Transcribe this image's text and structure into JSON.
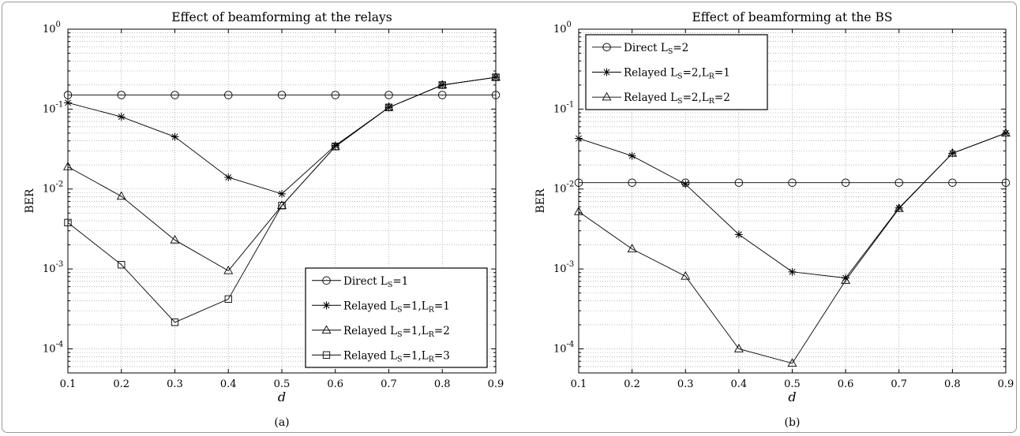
{
  "chart_data": [
    {
      "type": "line",
      "title": "Effect of beamforming at the relays",
      "xlabel": "d",
      "ylabel": "BER",
      "caption": "(a)",
      "x": [
        0.1,
        0.2,
        0.3,
        0.4,
        0.5,
        0.6,
        0.7,
        0.8,
        0.9
      ],
      "xlim": [
        0.1,
        0.9
      ],
      "xticks": [
        "0.1",
        "0.2",
        "0.3",
        "0.4",
        "0.5",
        "0.6",
        "0.7",
        "0.8",
        "0.9"
      ],
      "ylim": [
        5e-05,
        1
      ],
      "yscale": "log",
      "ytick_base": "10",
      "ytick_exps": [
        "0",
        "-1",
        "-2",
        "-3",
        "-4"
      ],
      "grid": true,
      "legend_position": "bottom-right",
      "series": [
        {
          "legend": [
            "Direct L",
            "S",
            "=1"
          ],
          "marker": "circle",
          "values": [
            0.15,
            0.15,
            0.15,
            0.15,
            0.15,
            0.15,
            0.15,
            0.15,
            0.15
          ]
        },
        {
          "legend": [
            "Relayed L",
            "S",
            "=1,L",
            "R",
            "=1"
          ],
          "marker": "star",
          "values": [
            0.12,
            0.08,
            0.045,
            0.014,
            0.0087,
            0.035,
            0.105,
            0.2,
            0.25
          ]
        },
        {
          "legend": [
            "Relayed L",
            "S",
            "=1,L",
            "R",
            "=2"
          ],
          "marker": "triangle",
          "values": [
            0.019,
            0.0081,
            0.0023,
            0.00095,
            0.0062,
            0.034,
            0.105,
            0.2,
            0.25
          ]
        },
        {
          "legend": [
            "Relayed L",
            "S",
            "=1,L",
            "R",
            "=3"
          ],
          "marker": "square",
          "values": [
            0.0038,
            0.00113,
            0.000215,
            0.00042,
            0.0062,
            0.034,
            0.105,
            0.2,
            0.25
          ]
        }
      ]
    },
    {
      "type": "line",
      "title": "Effect of beamforming at the BS",
      "xlabel": "d",
      "ylabel": "BER",
      "caption": "(b)",
      "x": [
        0.1,
        0.2,
        0.3,
        0.4,
        0.5,
        0.6,
        0.7,
        0.8,
        0.9
      ],
      "xlim": [
        0.1,
        0.9
      ],
      "xticks": [
        "0.1",
        "0.2",
        "0.3",
        "0.4",
        "0.5",
        "0.6",
        "0.7",
        "0.8",
        "0.9"
      ],
      "ylim": [
        5e-05,
        1
      ],
      "yscale": "log",
      "ytick_base": "10",
      "ytick_exps": [
        "0",
        "-1",
        "-2",
        "-3",
        "-4"
      ],
      "grid": true,
      "legend_position": "top-left",
      "series": [
        {
          "legend": [
            "Direct L",
            "S",
            "=2"
          ],
          "marker": "circle",
          "values": [
            0.012,
            0.012,
            0.012,
            0.012,
            0.012,
            0.012,
            0.012,
            0.012,
            0.012
          ]
        },
        {
          "legend": [
            "Relayed L",
            "S",
            "=2,L",
            "R",
            "=1"
          ],
          "marker": "star",
          "values": [
            0.043,
            0.026,
            0.0115,
            0.0027,
            0.00092,
            0.00077,
            0.0058,
            0.028,
            0.05
          ]
        },
        {
          "legend": [
            "Relayed L",
            "S",
            "=2,L",
            "R",
            "=2"
          ],
          "marker": "triangle",
          "values": [
            0.0052,
            0.00178,
            0.00081,
            0.0001,
            6.6e-05,
            0.00072,
            0.0057,
            0.028,
            0.05
          ]
        }
      ]
    }
  ]
}
